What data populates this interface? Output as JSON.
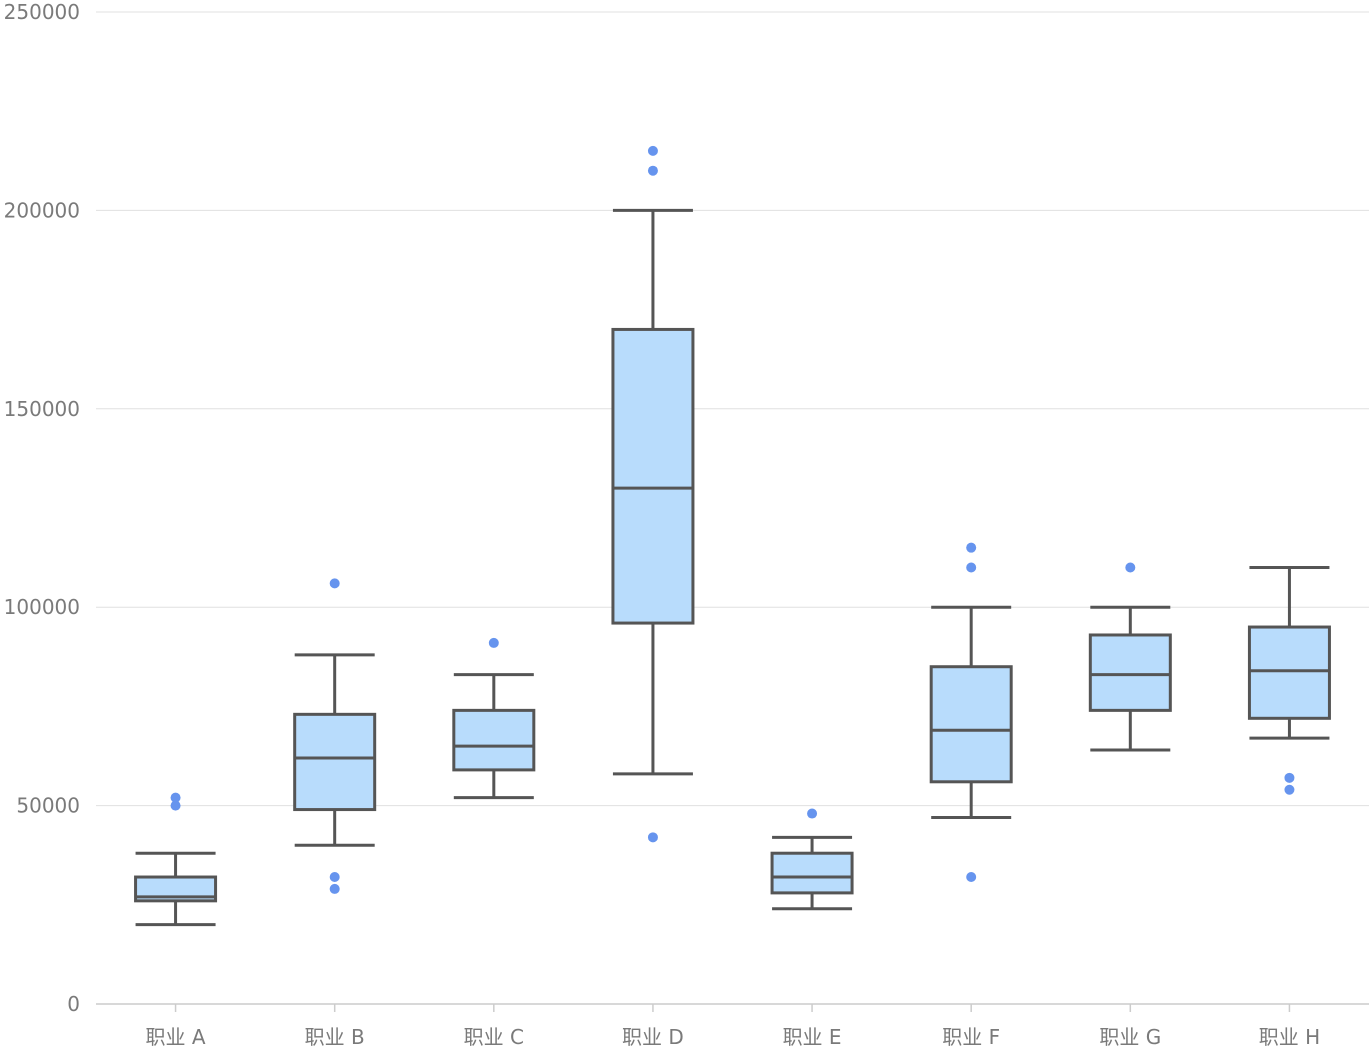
{
  "chart_data": {
    "type": "boxplot",
    "title": "",
    "xlabel": "",
    "ylabel": "",
    "ylim": [
      0,
      250000
    ],
    "y_ticks": [
      "0",
      "50000",
      "100000",
      "150000",
      "200000",
      "250000"
    ],
    "y_tick_values": [
      0,
      50000,
      100000,
      150000,
      200000,
      250000
    ],
    "grid": "horizontal",
    "categories": [
      "职业 A",
      "职业 B",
      "职业 C",
      "职业 D",
      "职业 E",
      "职业 F",
      "职业 G",
      "职业 H"
    ],
    "boxes": [
      {
        "category": "职业 A",
        "min": 20000,
        "q1": 26000,
        "median": 27000,
        "q3": 32000,
        "max": 38000,
        "outliers": [
          50000,
          52000
        ]
      },
      {
        "category": "职业 B",
        "min": 40000,
        "q1": 49000,
        "median": 62000,
        "q3": 73000,
        "max": 88000,
        "outliers": [
          106000,
          32000,
          29000
        ]
      },
      {
        "category": "职业 C",
        "min": 52000,
        "q1": 59000,
        "median": 65000,
        "q3": 74000,
        "max": 83000,
        "outliers": [
          91000
        ]
      },
      {
        "category": "职业 D",
        "min": 58000,
        "q1": 96000,
        "median": 130000,
        "q3": 170000,
        "max": 200000,
        "outliers": [
          215000,
          210000,
          42000
        ]
      },
      {
        "category": "职业 E",
        "min": 24000,
        "q1": 28000,
        "median": 32000,
        "q3": 38000,
        "max": 42000,
        "outliers": [
          48000
        ]
      },
      {
        "category": "职业 F",
        "min": 47000,
        "q1": 56000,
        "median": 69000,
        "q3": 85000,
        "max": 100000,
        "outliers": [
          115000,
          110000,
          32000
        ]
      },
      {
        "category": "职业 G",
        "min": 64000,
        "q1": 74000,
        "median": 83000,
        "q3": 93000,
        "max": 100000,
        "outliers": [
          110000
        ]
      },
      {
        "category": "职业 H",
        "min": 67000,
        "q1": 72000,
        "median": 84000,
        "q3": 95000,
        "max": 110000,
        "outliers": [
          57000,
          54000
        ]
      }
    ],
    "colors": {
      "box_fill": "#b8dcfc",
      "box_stroke": "#555555",
      "outlier": "#6694ee",
      "grid": "#e0e0e0",
      "axis": "#cccccc",
      "tick_text": "#7a7a7a"
    }
  }
}
